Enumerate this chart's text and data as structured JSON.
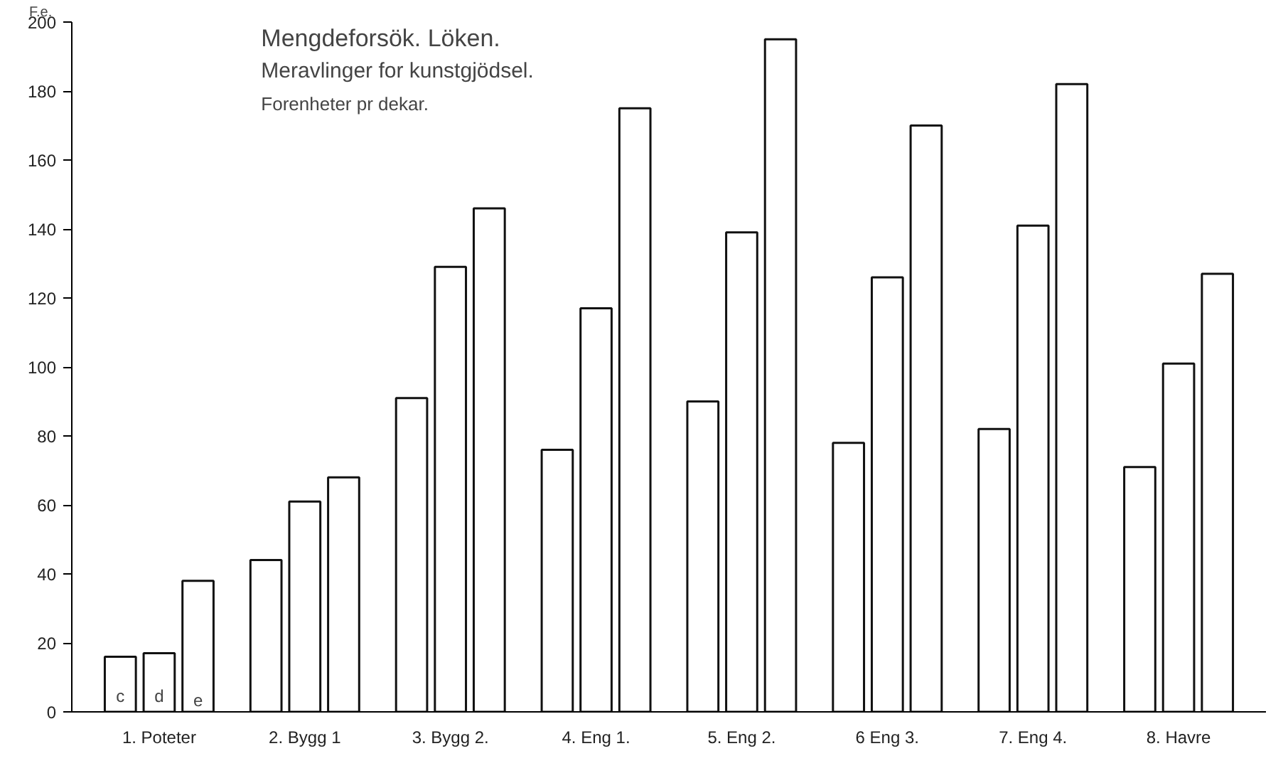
{
  "chart_data": {
    "type": "bar",
    "title": "Mengdeforsök. Löken.",
    "subtitle": "Meravlinger for kunstgjödsel.",
    "annotations": [
      "Forenheter pr dekar."
    ],
    "ylabel": "F.e.",
    "categories": [
      "1. Poteter",
      "2. Bygg 1",
      "3. Bygg 2.",
      "4. Eng 1.",
      "5. Eng 2.",
      "6 Eng 3.",
      "7. Eng 4.",
      "8. Havre"
    ],
    "series": [
      {
        "name": "c",
        "color": "#ffffff",
        "values": [
          16,
          44,
          91,
          76,
          90,
          78,
          82,
          71
        ]
      },
      {
        "name": "d",
        "color": "#ffffff",
        "values": [
          17,
          61,
          129,
          117,
          139,
          126,
          141,
          101
        ]
      },
      {
        "name": "e",
        "color": "#ffffff",
        "values": [
          38,
          68,
          146,
          175,
          195,
          170,
          182,
          127
        ]
      }
    ],
    "ylim": [
      0,
      200
    ],
    "yticks": [
      0,
      20,
      40,
      60,
      80,
      100,
      120,
      140,
      160,
      180,
      200
    ],
    "grid": false
  }
}
